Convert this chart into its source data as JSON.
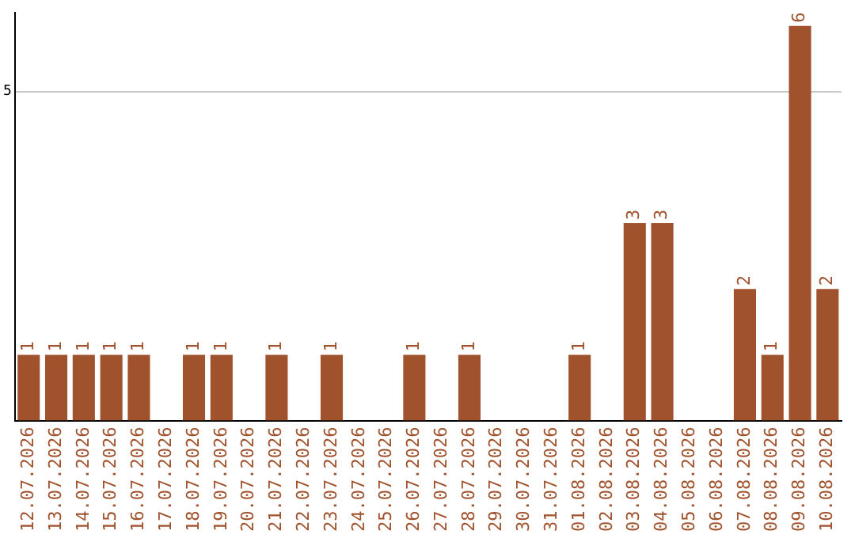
{
  "chart_data": {
    "type": "bar",
    "categories": [
      "12.07.2026",
      "13.07.2026",
      "14.07.2026",
      "15.07.2026",
      "16.07.2026",
      "17.07.2026",
      "18.07.2026",
      "19.07.2026",
      "20.07.2026",
      "21.07.2026",
      "22.07.2026",
      "23.07.2026",
      "24.07.2026",
      "25.07.2026",
      "26.07.2026",
      "27.07.2026",
      "28.07.2026",
      "29.07.2026",
      "30.07.2026",
      "31.07.2026",
      "01.08.2026",
      "02.08.2026",
      "03.08.2026",
      "04.08.2026",
      "05.08.2026",
      "06.08.2026",
      "07.08.2026",
      "08.08.2026",
      "09.08.2026",
      "10.08.2026"
    ],
    "values": [
      1,
      1,
      1,
      1,
      1,
      0,
      1,
      1,
      0,
      1,
      0,
      1,
      0,
      0,
      1,
      0,
      1,
      0,
      0,
      0,
      1,
      0,
      3,
      3,
      0,
      0,
      2,
      1,
      6,
      2
    ],
    "value_labels": [
      "1",
      "1",
      "1",
      "1",
      "1",
      null,
      "1",
      "1",
      null,
      "1",
      null,
      "1",
      null,
      null,
      "1",
      null,
      "1",
      null,
      null,
      null,
      "1",
      null,
      "3",
      "3",
      null,
      null,
      "2",
      "1",
      "6",
      "2"
    ],
    "color": "#a0522d",
    "ylim": [
      0,
      6.2
    ],
    "yticks": [
      5
    ],
    "grid": "y",
    "legend": false
  }
}
